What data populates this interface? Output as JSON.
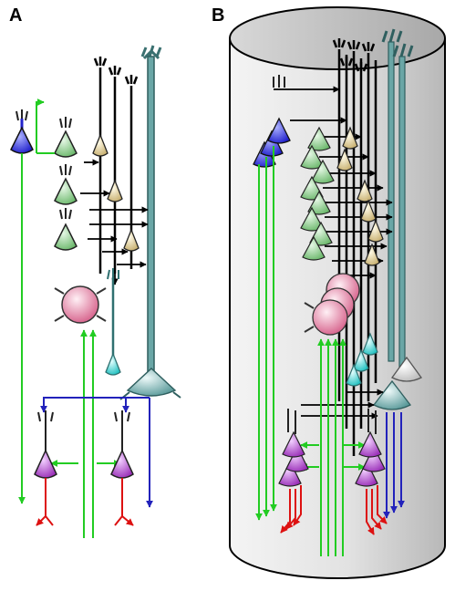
{
  "panels": {
    "a": {
      "label": "A"
    },
    "b": {
      "label": "B"
    }
  },
  "colors": {
    "excitatory_green": "#22cc22",
    "inhibitory_blue": "#2222bb",
    "output_red": "#dd1111",
    "axon_black": "#000000",
    "teal_cell": "#6aa6a6",
    "cyan_cell": "#40dede",
    "purple_cell": "#b050c8",
    "blue_cell": "#4444ee",
    "light_green_cell": "#9ed89e",
    "tan_cell": "#e4d4a0",
    "pink_cell": "#e88aa8",
    "cylinder_fill": "#e2e2e2"
  }
}
